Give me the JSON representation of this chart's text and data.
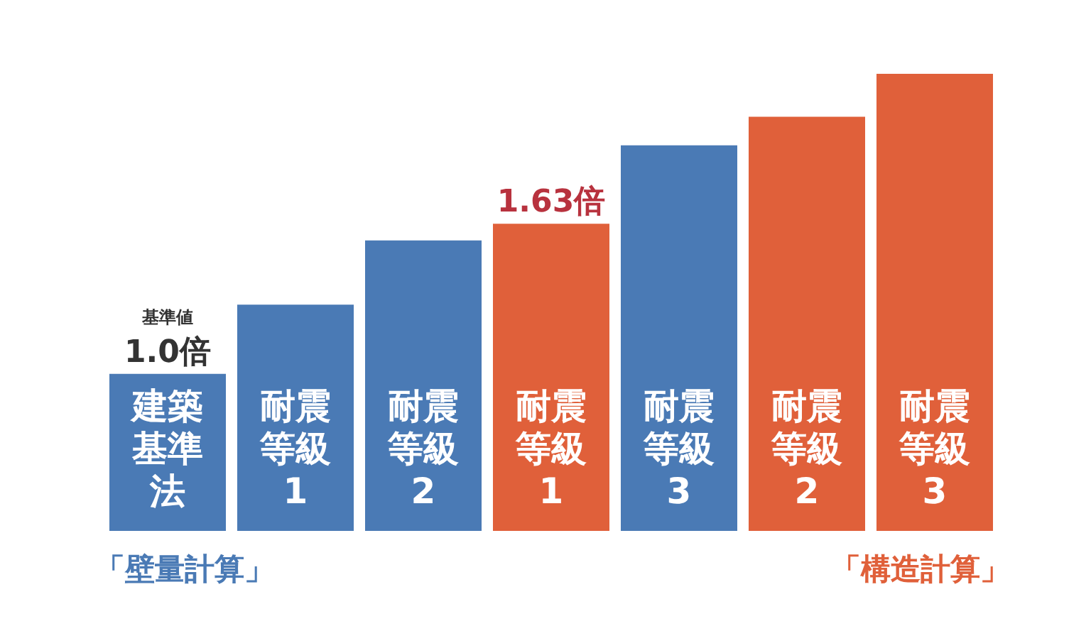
{
  "chart_data": {
    "type": "bar",
    "categories": [
      "建築基準法",
      "耐震等級1",
      "耐震等級2",
      "耐震等級1",
      "耐震等級3",
      "耐震等級2",
      "耐震等級3"
    ],
    "series": [
      {
        "name": "「壁量計算」",
        "color": "#4a7ab5",
        "values": [
          1.0,
          1.29,
          1.56,
          null,
          1.96,
          null,
          null
        ],
        "value_labels": [
          "1.0倍",
          null,
          null,
          null,
          null,
          null,
          null
        ]
      },
      {
        "name": "「構造計算」",
        "color": "#e0603a",
        "values": [
          null,
          null,
          null,
          1.63,
          null,
          2.08,
          2.26
        ],
        "value_labels": [
          null,
          null,
          null,
          "1.63倍",
          null,
          null,
          null
        ]
      }
    ],
    "ylim": [
      0.34,
      2.26
    ],
    "tick_labels": "x",
    "annotations": [
      "基準値"
    ],
    "legend": "bottom"
  }
}
